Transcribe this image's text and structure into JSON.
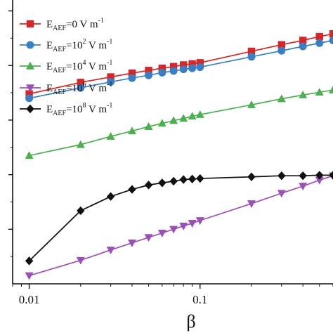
{
  "chart_data": {
    "type": "line",
    "title": "",
    "xlabel": "β",
    "ylabel": "",
    "x_scale": "log",
    "xlim": [
      0.008,
      0.6
    ],
    "ylim": [
      0,
      5.2
    ],
    "x_ticks": [
      0.01,
      0.1
    ],
    "x_tick_labels": [
      "0.01",
      "0.1"
    ],
    "y_ticks": [
      1,
      2,
      3,
      4,
      5
    ],
    "y_tick_labels": [
      "",
      "",
      "",
      "",
      ""
    ],
    "grid": false,
    "legend_position": "top-left",
    "series": [
      {
        "name": "E_AEF=0 V m^-1",
        "legend": {
          "main": "E",
          "sub": "AEF",
          "rest": "=0 V m",
          "sup": "-1"
        },
        "color": "#d62728",
        "marker": "square",
        "x": [
          0.01,
          0.02,
          0.03,
          0.04,
          0.05,
          0.06,
          0.07,
          0.08,
          0.09,
          0.1,
          0.2,
          0.3,
          0.4,
          0.5,
          0.6
        ],
        "y": [
          3.48,
          3.69,
          3.79,
          3.86,
          3.91,
          3.95,
          3.98,
          4.01,
          4.03,
          4.05,
          4.26,
          4.38,
          4.46,
          4.53,
          4.58
        ]
      },
      {
        "name": "E_AEF=10^2 V m^-1",
        "legend": {
          "main": "E",
          "sub": "AEF",
          "rest": "=10",
          "sup2": "2",
          "rest2": " V m",
          "sup": "-1"
        },
        "color": "#3a7fc4",
        "marker": "circle",
        "x": [
          0.01,
          0.02,
          0.03,
          0.04,
          0.05,
          0.06,
          0.07,
          0.08,
          0.09,
          0.1,
          0.2,
          0.3,
          0.4,
          0.5,
          0.6
        ],
        "y": [
          3.4,
          3.59,
          3.7,
          3.77,
          3.82,
          3.87,
          3.9,
          3.93,
          3.95,
          3.97,
          4.16,
          4.27,
          4.35,
          4.41,
          4.46
        ]
      },
      {
        "name": "E_AEF=10^4 V m^-1",
        "legend": {
          "main": "E",
          "sub": "AEF",
          "rest": "=10",
          "sup2": "4",
          "rest2": " V m",
          "sup": "-1"
        },
        "color": "#4caf50",
        "marker": "triangle-up",
        "x": [
          0.01,
          0.02,
          0.03,
          0.04,
          0.05,
          0.06,
          0.07,
          0.08,
          0.09,
          0.1,
          0.2,
          0.3,
          0.4,
          0.5,
          0.6
        ],
        "y": [
          2.35,
          2.55,
          2.7,
          2.8,
          2.88,
          2.94,
          2.99,
          3.03,
          3.07,
          3.1,
          3.28,
          3.39,
          3.46,
          3.51,
          3.55
        ]
      },
      {
        "name": "E_AEF=10^6 V m^-1",
        "legend": {
          "main": "E",
          "sub": "AEF",
          "rest": "=10",
          "sup2": "6",
          "rest2": " V m",
          "sup": "-1"
        },
        "color": "#9b4fb8",
        "marker": "triangle-down",
        "x": [
          0.01,
          0.02,
          0.03,
          0.04,
          0.05,
          0.06,
          0.07,
          0.08,
          0.09,
          0.1,
          0.2,
          0.3,
          0.4,
          0.5,
          0.6
        ],
        "y": [
          0.15,
          0.43,
          0.62,
          0.75,
          0.85,
          0.93,
          1.0,
          1.06,
          1.11,
          1.16,
          1.47,
          1.66,
          1.79,
          1.9,
          1.98
        ]
      },
      {
        "name": "E_AEF=10^8 V m^-1",
        "legend": {
          "main": "E",
          "sub": "AEF",
          "rest": "=10",
          "sup2": "8",
          "rest2": " V m",
          "sup": "-1"
        },
        "color": "#111111",
        "marker": "diamond",
        "x": [
          0.01,
          0.02,
          0.03,
          0.04,
          0.05,
          0.06,
          0.07,
          0.08,
          0.09,
          0.1,
          0.2,
          0.3,
          0.4,
          0.5,
          0.6
        ],
        "y": [
          0.42,
          1.34,
          1.6,
          1.73,
          1.81,
          1.85,
          1.88,
          1.91,
          1.92,
          1.93,
          1.96,
          1.98,
          1.98,
          1.99,
          1.99
        ]
      }
    ]
  }
}
